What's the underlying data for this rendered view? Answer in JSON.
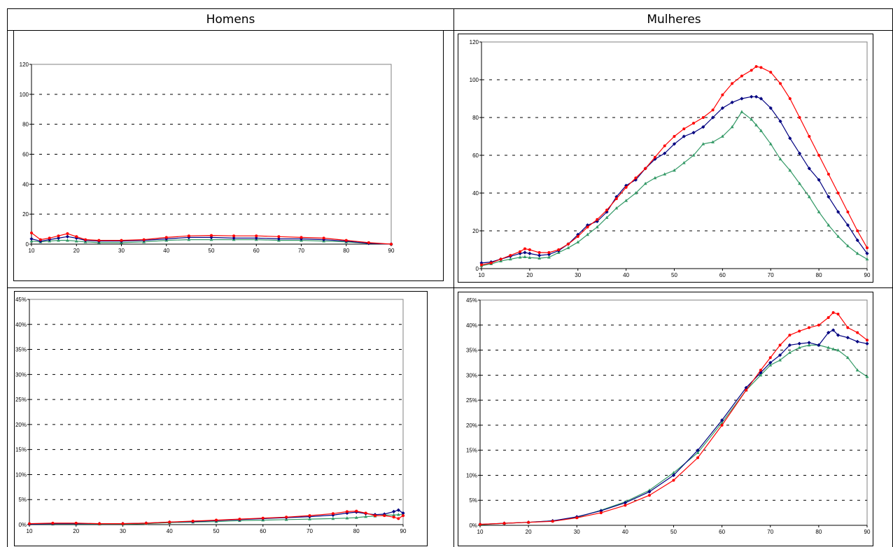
{
  "headers": {
    "left": "Homens",
    "right": "Mulheres"
  },
  "colors": {
    "red": "#ff0000",
    "blue": "#000080",
    "green": "#339966"
  },
  "chart_data": [
    {
      "type": "line",
      "panel": "Homens - count",
      "xlim": [
        10,
        90
      ],
      "ylim": [
        0,
        120
      ],
      "xticks": [
        "10",
        "20",
        "30",
        "40",
        "50",
        "60",
        "70",
        "80",
        "90"
      ],
      "yticks": [
        "0",
        "20",
        "40",
        "60",
        "80",
        "100",
        "120"
      ],
      "grid": "horizontal-dashed",
      "x": [
        10,
        12,
        14,
        16,
        18,
        20,
        22,
        25,
        30,
        35,
        40,
        45,
        50,
        55,
        60,
        65,
        70,
        75,
        80,
        85,
        90
      ],
      "series": [
        {
          "color": "red",
          "marker": "circle",
          "values": [
            7.5,
            3,
            4,
            5.5,
            7,
            5,
            3,
            2.5,
            2.5,
            3,
            4.5,
            5.5,
            5.8,
            5.5,
            5.5,
            5,
            4.5,
            4,
            2.5,
            1,
            0
          ]
        },
        {
          "color": "blue",
          "marker": "diamond",
          "values": [
            3.5,
            2,
            3,
            4,
            5,
            4,
            2.5,
            2,
            2,
            2.5,
            3.5,
            4.5,
            4.5,
            4,
            4,
            3.5,
            3.5,
            3,
            2,
            0.5,
            0
          ]
        },
        {
          "color": "green",
          "marker": "triangle",
          "values": [
            2,
            1.5,
            2,
            2.5,
            2.5,
            2,
            1.5,
            1,
            1,
            1.5,
            2.5,
            3,
            3,
            3,
            3,
            2.5,
            2.5,
            2,
            1.5,
            0.5,
            0
          ]
        }
      ]
    },
    {
      "type": "line",
      "panel": "Mulheres - count",
      "xlim": [
        10,
        90
      ],
      "ylim": [
        0,
        120
      ],
      "xticks": [
        "10",
        "20",
        "30",
        "40",
        "50",
        "60",
        "70",
        "80",
        "90"
      ],
      "yticks": [
        "0",
        "20",
        "40",
        "60",
        "80",
        "100",
        "120"
      ],
      "grid": "horizontal-dashed",
      "x": [
        10,
        12,
        14,
        16,
        18,
        19,
        20,
        22,
        24,
        26,
        28,
        30,
        32,
        34,
        36,
        38,
        40,
        42,
        44,
        46,
        48,
        50,
        52,
        54,
        56,
        58,
        60,
        62,
        64,
        66,
        67,
        68,
        70,
        72,
        74,
        76,
        78,
        80,
        82,
        84,
        86,
        88,
        90
      ],
      "series": [
        {
          "color": "red",
          "marker": "circle",
          "values": [
            2,
            3,
            5,
            7,
            9,
            10.5,
            10,
            8.5,
            8.5,
            10,
            13,
            17,
            22,
            26,
            31,
            37,
            43,
            48,
            53,
            59,
            65,
            70,
            74,
            77,
            80,
            84,
            92,
            98,
            102,
            105,
            107,
            106.5,
            104,
            98,
            90,
            80,
            70,
            60,
            50,
            40,
            30,
            20,
            11
          ]
        },
        {
          "color": "blue",
          "marker": "diamond",
          "values": [
            3,
            3.5,
            5,
            6.5,
            8,
            8.5,
            8,
            7,
            7.5,
            9.5,
            13,
            18,
            23,
            25,
            30,
            38,
            44,
            47,
            53,
            58,
            61,
            66,
            70,
            72,
            75,
            80,
            85,
            88,
            90,
            91,
            91,
            90,
            85,
            78,
            69,
            61,
            53,
            47,
            38,
            30,
            23,
            15,
            8
          ]
        },
        {
          "color": "green",
          "marker": "triangle",
          "values": [
            1.5,
            2.5,
            4,
            5,
            6,
            6.2,
            5.8,
            5.5,
            6,
            8.5,
            11,
            14,
            18,
            22,
            27,
            32,
            36,
            40,
            45,
            48,
            50,
            52,
            56,
            60,
            66,
            67,
            70,
            75,
            83,
            79,
            76,
            73,
            66,
            58,
            52,
            45,
            38,
            30,
            23,
            17,
            12,
            8,
            5
          ]
        }
      ]
    },
    {
      "type": "line",
      "panel": "Homens - percent",
      "xlim": [
        10,
        90
      ],
      "ylim": [
        0,
        45
      ],
      "xticks": [
        "10",
        "20",
        "30",
        "40",
        "50",
        "60",
        "70",
        "80",
        "90"
      ],
      "yticks": [
        "0%",
        "5%",
        "10%",
        "15%",
        "20%",
        "25%",
        "30%",
        "35%",
        "40%",
        "45%"
      ],
      "grid": "horizontal-dashed",
      "x": [
        10,
        15,
        20,
        25,
        30,
        35,
        40,
        45,
        50,
        55,
        60,
        65,
        70,
        75,
        78,
        80,
        82,
        84,
        86,
        88,
        89,
        90
      ],
      "series": [
        {
          "color": "red",
          "marker": "circle",
          "values": [
            0.2,
            0.3,
            0.3,
            0.2,
            0.2,
            0.3,
            0.5,
            0.7,
            0.9,
            1.1,
            1.3,
            1.5,
            1.8,
            2.2,
            2.6,
            2.7,
            2.3,
            1.8,
            1.8,
            1.5,
            1.2,
            1.8
          ]
        },
        {
          "color": "blue",
          "marker": "diamond",
          "values": [
            0.1,
            0.2,
            0.2,
            0.2,
            0.2,
            0.3,
            0.5,
            0.6,
            0.8,
            1.0,
            1.2,
            1.4,
            1.6,
            1.9,
            2.3,
            2.5,
            2.2,
            2.0,
            2.1,
            2.6,
            2.9,
            2.3
          ]
        },
        {
          "color": "green",
          "marker": "triangle",
          "values": [
            0.1,
            0.1,
            0.1,
            0.1,
            0.1,
            0.2,
            0.4,
            0.5,
            0.6,
            0.8,
            0.9,
            1.0,
            1.1,
            1.2,
            1.3,
            1.4,
            1.6,
            1.7,
            1.9,
            1.9,
            2.0,
            2.0
          ]
        }
      ]
    },
    {
      "type": "line",
      "panel": "Mulheres - percent",
      "xlim": [
        10,
        90
      ],
      "ylim": [
        0,
        45
      ],
      "xticks": [
        "10",
        "20",
        "30",
        "40",
        "50",
        "60",
        "70",
        "80",
        "90"
      ],
      "yticks": [
        "0%",
        "5%",
        "10%",
        "15%",
        "20%",
        "25%",
        "30%",
        "35%",
        "40%",
        "45%"
      ],
      "grid": "horizontal-dashed",
      "x": [
        10,
        15,
        20,
        25,
        30,
        35,
        40,
        45,
        50,
        55,
        60,
        65,
        68,
        70,
        72,
        74,
        76,
        78,
        80,
        82,
        83,
        84,
        86,
        88,
        90
      ],
      "series": [
        {
          "color": "red",
          "marker": "circle",
          "values": [
            0.2,
            0.4,
            0.6,
            0.8,
            1.5,
            2.5,
            4.0,
            6.0,
            9.0,
            13.5,
            20.0,
            27.0,
            31.0,
            33.5,
            36.0,
            38.0,
            38.8,
            39.5,
            40.0,
            41.5,
            42.5,
            42.2,
            39.5,
            38.5,
            37.0
          ]
        },
        {
          "color": "blue",
          "marker": "diamond",
          "values": [
            0.2,
            0.4,
            0.6,
            0.9,
            1.7,
            2.9,
            4.5,
            6.7,
            10.0,
            15.0,
            21.0,
            27.5,
            30.5,
            32.5,
            34.0,
            36.0,
            36.3,
            36.5,
            36.0,
            38.5,
            39.0,
            38.0,
            37.5,
            36.7,
            36.3
          ]
        },
        {
          "color": "green",
          "marker": "triangle",
          "values": [
            0.1,
            0.4,
            0.6,
            0.9,
            1.6,
            3.0,
            4.7,
            7.0,
            10.5,
            14.5,
            20.5,
            27.0,
            30.0,
            32.0,
            33.0,
            34.5,
            35.5,
            36.0,
            36.0,
            35.5,
            35.2,
            35.0,
            33.5,
            31.0,
            29.7
          ]
        }
      ]
    }
  ]
}
